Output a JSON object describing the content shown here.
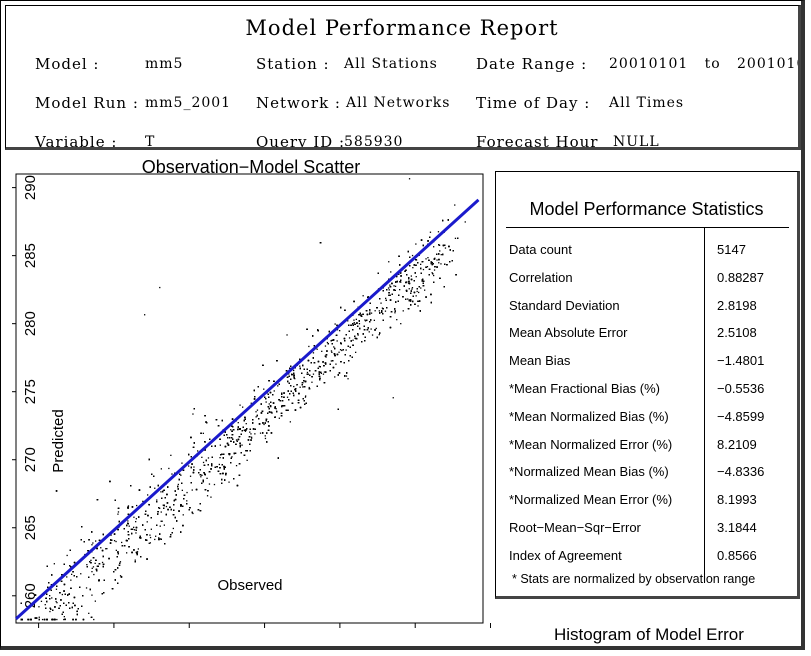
{
  "report": {
    "title": "Model Performance Report",
    "model_label": "Model :",
    "model_value": "mm5",
    "station_label": "Station :",
    "station_value": "All Stations",
    "date_label": "Date Range :",
    "date_value": "20010101   to   2001010",
    "model_run_label": "Model Run :",
    "model_run_value": "mm5_2001",
    "network_label": "Network :",
    "network_value": "All Networks",
    "time_label": "Time of Day :",
    "time_value": "All Times",
    "variable_label": "Variable :",
    "variable_value": "T",
    "query_label": "Query ID :",
    "query_value": "585930",
    "forecast_label": "Forecast Hour",
    "forecast_value": "NULL"
  },
  "stats": {
    "title": "Model Performance Statistics",
    "rows": [
      {
        "label": "Data count",
        "value": "5147"
      },
      {
        "label": "Correlation",
        "value": "0.88287"
      },
      {
        "label": "Standard Deviation",
        "value": "2.8198"
      },
      {
        "label": "Mean Absolute Error",
        "value": "2.5108"
      },
      {
        "label": "Mean Bias",
        "value": "−1.4801"
      },
      {
        "label": "*Mean Fractional Bias (%)",
        "value": "−0.5536"
      },
      {
        "label": "*Mean Normalized Bias (%)",
        "value": "−4.8599"
      },
      {
        "label": "*Mean Normalized Error (%)",
        "value": "8.2109"
      },
      {
        "label": "*Normalized Mean Bias (%)",
        "value": "−4.8336"
      },
      {
        "label": "*Normalized Mean Error (%)",
        "value": "8.1993"
      },
      {
        "label": "Root−Mean−Sqr−Error",
        "value": "3.1844"
      },
      {
        "label": "Index of Agreement",
        "value": "0.8566"
      }
    ],
    "footnote": "* Stats are normalized by observation range"
  },
  "histogram": {
    "title": "Histogram of Model Error"
  },
  "chart_data": {
    "type": "scatter",
    "title": "Observation−Model Scatter",
    "xlabel": "Observed",
    "ylabel": "Predicted",
    "xlim": [
      258.5,
      289.5
    ],
    "ylim": [
      258,
      291
    ],
    "xticks": [
      260,
      265,
      270,
      275,
      280,
      285,
      290
    ],
    "yticks": [
      260,
      265,
      270,
      275,
      280,
      285,
      290
    ],
    "n_points": 5147,
    "point_color": "#000000",
    "fit_line": {
      "color": "#1a1acc",
      "x": [
        258.5,
        289.2
      ],
      "y": [
        258.3,
        289.1
      ]
    },
    "sample_points": [
      [
        261.0,
        262.4
      ],
      [
        262.1,
        261.2
      ],
      [
        263.5,
        263.8
      ],
      [
        264.2,
        262.5
      ],
      [
        265.0,
        264.1
      ],
      [
        265.8,
        263.2
      ],
      [
        266.4,
        265.5
      ],
      [
        267.3,
        263.9
      ],
      [
        268.1,
        266.2
      ],
      [
        268.9,
        265.0
      ],
      [
        269.5,
        267.8
      ],
      [
        270.2,
        266.1
      ],
      [
        270.8,
        268.9
      ],
      [
        271.4,
        267.3
      ],
      [
        272.0,
        270.2
      ],
      [
        272.6,
        268.4
      ],
      [
        273.1,
        271.5
      ],
      [
        273.8,
        270.0
      ],
      [
        274.4,
        273.2
      ],
      [
        275.0,
        271.8
      ],
      [
        275.6,
        275.1
      ],
      [
        276.2,
        274.0
      ],
      [
        276.8,
        276.3
      ],
      [
        277.5,
        275.4
      ],
      [
        278.2,
        277.9
      ],
      [
        279.0,
        278.4
      ],
      [
        279.8,
        279.6
      ],
      [
        280.6,
        279.0
      ],
      [
        281.5,
        282.1
      ],
      [
        282.3,
        281.0
      ],
      [
        283.2,
        284.6
      ],
      [
        284.0,
        283.1
      ],
      [
        285.0,
        285.9
      ],
      [
        285.7,
        284.2
      ],
      [
        286.5,
        286.8
      ],
      [
        268.0,
        282.7
      ],
      [
        267.0,
        280.7
      ],
      [
        280.5,
        276.0
      ],
      [
        283.5,
        274.6
      ],
      [
        262.5,
        258.9
      ]
    ]
  }
}
